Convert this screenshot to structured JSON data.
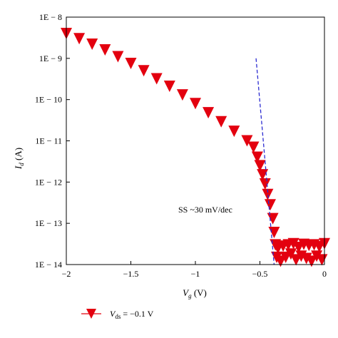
{
  "chart_data": {
    "type": "scatter",
    "title": "",
    "xlabel": {
      "main": "V",
      "sub": "g",
      "unit": " (V)"
    },
    "ylabel": {
      "main": "I",
      "sub": "d",
      "unit": " (A)"
    },
    "xlim": [
      -2,
      0
    ],
    "ylim": [
      1e-14,
      1e-08
    ],
    "yscale": "log",
    "grid": false,
    "x_ticks": [
      "−2",
      "−1.5",
      "−1",
      "−0.5",
      "0"
    ],
    "x_tick_values": [
      -2,
      -1.5,
      -1,
      -0.5,
      0
    ],
    "y_ticks": [
      "1E − 14",
      "1E − 13",
      "1E − 12",
      "1E − 11",
      "1E − 10",
      "1E − 9",
      "1E − 8"
    ],
    "y_tick_exponents": [
      -14,
      -13,
      -12,
      -11,
      -10,
      -9,
      -8
    ],
    "series": [
      {
        "name": "V_ds = −0.1 V",
        "marker": "triangle-down",
        "color": "#e3000f",
        "x": [
          -2.0,
          -1.9,
          -1.8,
          -1.7,
          -1.6,
          -1.5,
          -1.4,
          -1.3,
          -1.2,
          -1.1,
          -1.0,
          -0.9,
          -0.8,
          -0.7,
          -0.6,
          -0.55,
          -0.52,
          -0.5,
          -0.48,
          -0.46,
          -0.44,
          -0.42,
          -0.4,
          -0.39,
          -0.38,
          -0.37,
          -0.36,
          -0.34,
          -0.32,
          -0.3,
          -0.28,
          -0.26,
          -0.24,
          -0.22,
          -0.2,
          -0.18,
          -0.16,
          -0.14,
          -0.12,
          -0.1,
          -0.08,
          -0.06,
          -0.04,
          -0.02,
          0.0
        ],
        "y": [
          4e-09,
          3e-09,
          2.2e-09,
          1.6e-09,
          1.1e-09,
          7.5e-10,
          5e-10,
          3.2e-10,
          2.1e-10,
          1.3e-10,
          8e-11,
          4.8e-11,
          2.9e-11,
          1.7e-11,
          1e-11,
          7e-12,
          4e-12,
          2.5e-12,
          1.5e-12,
          9e-13,
          5e-13,
          2.8e-13,
          1.3e-13,
          6e-14,
          3e-14,
          1.5e-14,
          2.5e-14,
          1.2e-14,
          2.8e-14,
          1.5e-14,
          3e-14,
          1.8e-14,
          3.2e-14,
          1.3e-14,
          2.6e-14,
          1.6e-14,
          3.1e-14,
          1.4e-14,
          2.9e-14,
          1.2e-14,
          3e-14,
          1.6e-14,
          2.7e-14,
          1.3e-14,
          3.2e-14
        ]
      }
    ],
    "fit_line": {
      "style": "dashed",
      "color": "#2b2bd1",
      "x": [
        -0.53,
        -0.39
      ],
      "y": [
        1e-09,
        1e-14
      ]
    },
    "annotations": [
      {
        "text": "SS ~30 mV/dec"
      }
    ],
    "legend": {
      "placement": "bottom-left",
      "label_main": "V",
      "label_sub": "ds",
      "label_rest": " = −0.1 V"
    }
  }
}
